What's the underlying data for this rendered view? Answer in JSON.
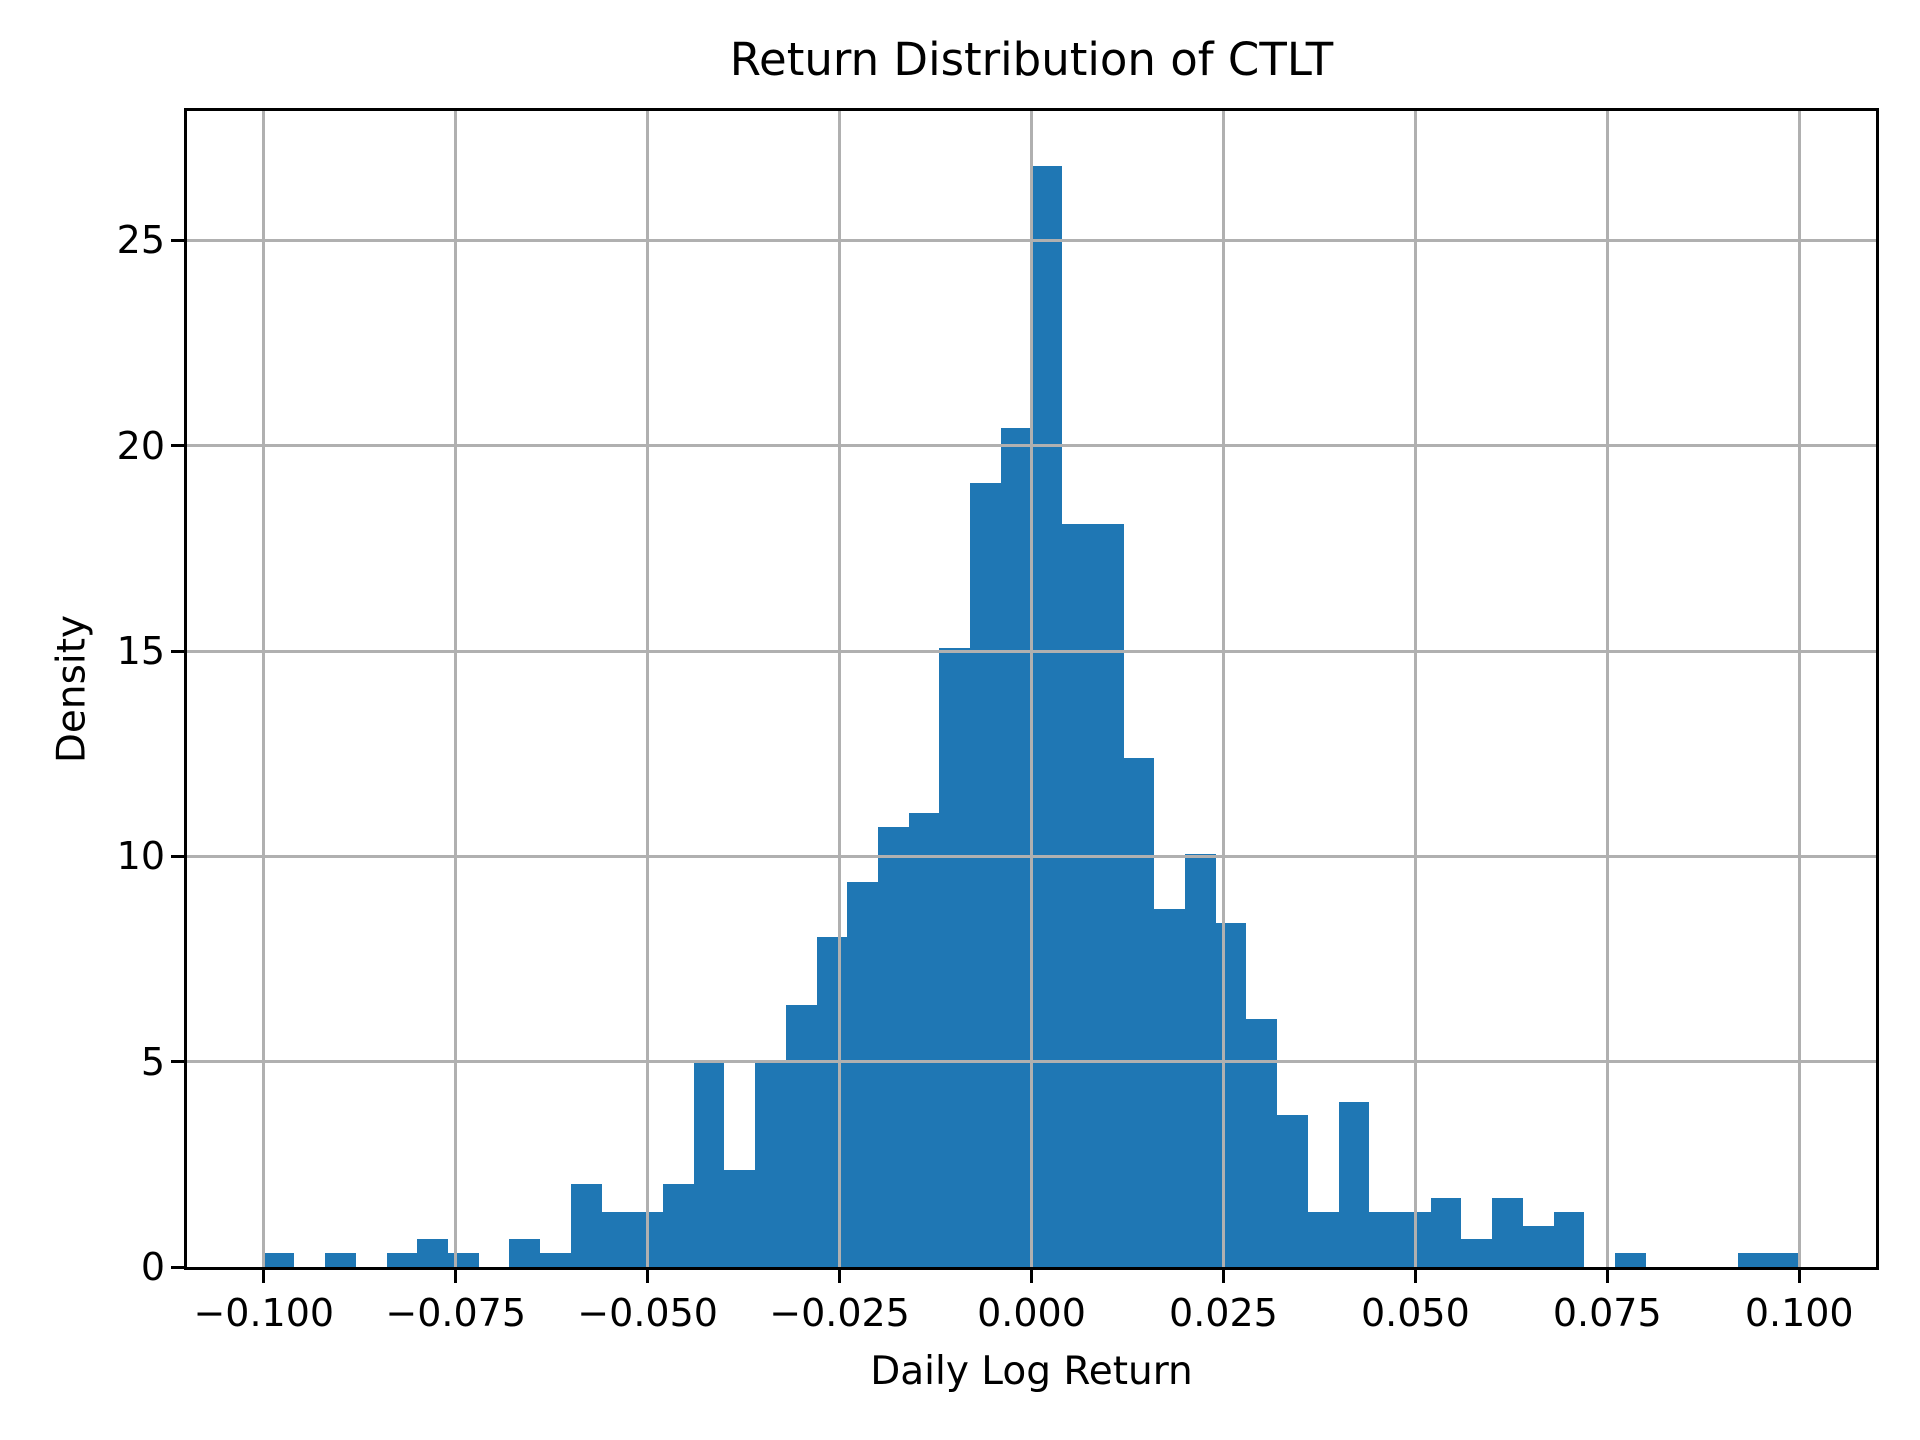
{
  "figure": {
    "title": "Return Distribution of CTLT"
  },
  "axes": {
    "xlabel": "Daily Log Return",
    "ylabel": "Density"
  },
  "chart_data": {
    "type": "bar",
    "subtype": "histogram",
    "title": "Return Distribution of CTLT",
    "xlabel": "Daily Log Return",
    "ylabel": "Density",
    "bar_color": "#1f77b4",
    "grid_color": "#b0b0b0",
    "grid": true,
    "legend": false,
    "xlim": [
      -0.11,
      0.11
    ],
    "ylim": [
      0,
      28.15
    ],
    "bin_start": -0.1,
    "bin_width": 0.004,
    "densities": [
      0.34,
      0,
      0.34,
      0,
      0.34,
      0.67,
      0.34,
      0,
      0.67,
      0.34,
      2.01,
      1.34,
      1.34,
      2.01,
      5.03,
      2.35,
      5.03,
      6.37,
      8.04,
      9.38,
      10.72,
      11.06,
      15.08,
      19.1,
      20.44,
      26.81,
      18.1,
      18.1,
      12.4,
      8.71,
      10.05,
      8.38,
      6.03,
      3.69,
      1.34,
      4.02,
      1.34,
      1.34,
      1.68,
      0.67,
      1.68,
      1.01,
      1.34,
      0,
      0.34,
      0,
      0,
      0,
      0.34,
      0.34
    ],
    "xticks": [
      {
        "value": -0.1,
        "label": "−0.100"
      },
      {
        "value": -0.075,
        "label": "−0.075"
      },
      {
        "value": -0.05,
        "label": "−0.050"
      },
      {
        "value": -0.025,
        "label": "−0.025"
      },
      {
        "value": 0.0,
        "label": "0.000"
      },
      {
        "value": 0.025,
        "label": "0.025"
      },
      {
        "value": 0.05,
        "label": "0.050"
      },
      {
        "value": 0.075,
        "label": "0.075"
      },
      {
        "value": 0.1,
        "label": "0.100"
      }
    ],
    "yticks": [
      {
        "value": 0,
        "label": "0"
      },
      {
        "value": 5,
        "label": "5"
      },
      {
        "value": 10,
        "label": "10"
      },
      {
        "value": 15,
        "label": "15"
      },
      {
        "value": 20,
        "label": "20"
      },
      {
        "value": 25,
        "label": "25"
      }
    ]
  }
}
